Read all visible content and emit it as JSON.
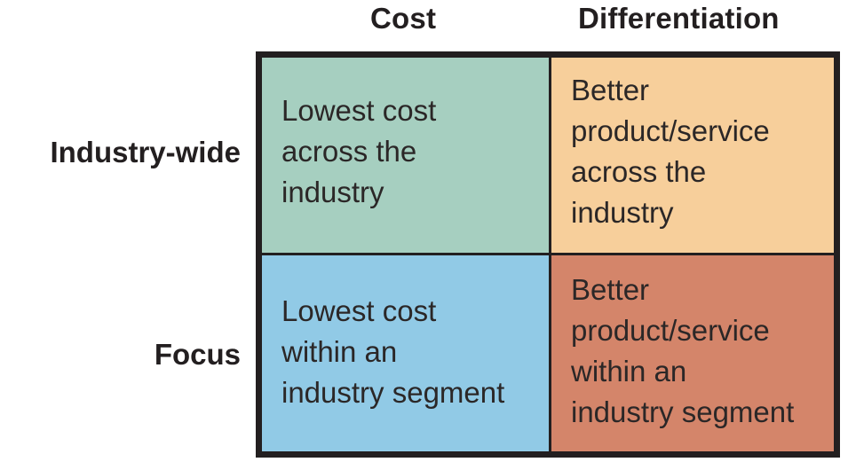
{
  "columns": {
    "cost": "Cost",
    "differentiation": "Differentiation"
  },
  "rows": {
    "industry_wide": "Industry-wide",
    "focus": "Focus"
  },
  "cells": {
    "top_left": "Lowest cost\nacross the\nindustry",
    "top_right": "Better\nproduct/service\nacross the\nindustry",
    "bottom_left": "Lowest cost\nwithin an\nindustry segment",
    "bottom_right": "Better\nproduct/service\nwithin an\nindustry segment"
  },
  "colors": {
    "top_left": "#a6cfc0",
    "top_right": "#f7cf9b",
    "bottom_left": "#91cae6",
    "bottom_right": "#d4856a",
    "border": "#231f20"
  }
}
